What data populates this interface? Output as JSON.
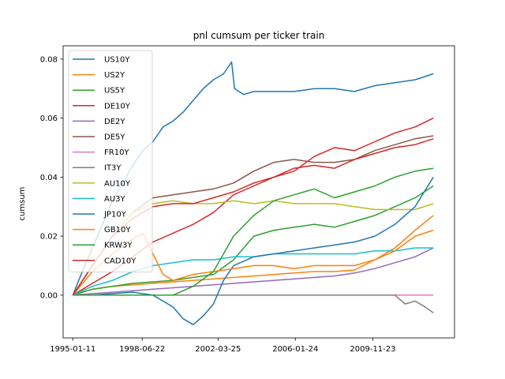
{
  "chart_data": {
    "type": "line",
    "title": "pnl cumsum per ticker train",
    "xlabel": "",
    "ylabel": "cumsum",
    "x_ticks": [
      "1995-01-11",
      "1998-06-22",
      "2002-03-25",
      "2006-01-24",
      "2009-11-23"
    ],
    "y_ticks": [
      "0.00",
      "0.02",
      "0.04",
      "0.06",
      "0.08"
    ],
    "y_tick_values": [
      0.0,
      0.02,
      0.04,
      0.06,
      0.08
    ],
    "xlim": [
      1994.55,
      2013.95
    ],
    "ylim": [
      -0.0145,
      0.0845
    ],
    "grid": false,
    "legend_placement": "upper-left",
    "series": [
      {
        "name": "US10Y",
        "color": "#1f77b4",
        "x": [
          1995.03,
          1995.5,
          1996.0,
          1996.5,
          1997.0,
          1997.5,
          1998.0,
          1998.5,
          1999.0,
          1999.5,
          2000.0,
          2000.5,
          2001.0,
          2001.5,
          2002.0,
          2002.5,
          2002.9,
          2003.05,
          2003.5,
          2004.0,
          2005.0,
          2006.0,
          2007.0,
          2008.0,
          2009.0,
          2010.0,
          2011.0,
          2012.0,
          2012.9
        ],
        "y": [
          0.0,
          0.008,
          0.016,
          0.024,
          0.032,
          0.038,
          0.044,
          0.049,
          0.052,
          0.057,
          0.059,
          0.062,
          0.066,
          0.07,
          0.073,
          0.075,
          0.079,
          0.07,
          0.068,
          0.069,
          0.069,
          0.069,
          0.07,
          0.07,
          0.069,
          0.071,
          0.072,
          0.073,
          0.075
        ]
      },
      {
        "name": "US2Y",
        "color": "#ff7f0e",
        "x": [
          1995.03,
          1995.5,
          1996.0,
          1997.0,
          1998.0,
          1999.0,
          2000.0,
          2001.0,
          2002.0,
          2003.0,
          2004.0,
          2005.0,
          2006.0,
          2007.0,
          2008.0,
          2009.0,
          2010.0,
          2011.0,
          2012.0,
          2012.9
        ],
        "y": [
          0.0,
          0.001,
          0.002,
          0.003,
          0.0035,
          0.004,
          0.0045,
          0.005,
          0.0055,
          0.006,
          0.0065,
          0.007,
          0.0075,
          0.008,
          0.008,
          0.0085,
          0.012,
          0.016,
          0.022,
          0.027
        ]
      },
      {
        "name": "US5Y",
        "color": "#2ca02c",
        "x": [
          1995.03,
          1996.0,
          1997.0,
          1998.0,
          1999.0,
          2000.0,
          2001.0,
          2002.0,
          2003.0,
          2004.0,
          2005.0,
          2006.0,
          2007.0,
          2008.0,
          2009.0,
          2010.0,
          2011.0,
          2012.0,
          2012.9
        ],
        "y": [
          0.0,
          0.002,
          0.003,
          0.004,
          0.0045,
          0.005,
          0.006,
          0.007,
          0.012,
          0.02,
          0.022,
          0.023,
          0.024,
          0.023,
          0.025,
          0.027,
          0.03,
          0.033,
          0.037
        ]
      },
      {
        "name": "DE10Y",
        "color": "#d62728",
        "x": [
          1995.03,
          1996.0,
          1997.0,
          1998.0,
          1999.0,
          2000.0,
          2001.0,
          2002.0,
          2003.0,
          2004.0,
          2005.0,
          2006.0,
          2007.0,
          2008.0,
          2009.0,
          2010.0,
          2011.0,
          2012.0,
          2012.9
        ],
        "y": [
          0.0,
          0.004,
          0.008,
          0.013,
          0.018,
          0.021,
          0.024,
          0.028,
          0.034,
          0.037,
          0.04,
          0.042,
          0.047,
          0.05,
          0.049,
          0.052,
          0.055,
          0.057,
          0.06
        ]
      },
      {
        "name": "DE2Y",
        "color": "#9467bd",
        "x": [
          1995.03,
          1996.0,
          1997.0,
          1998.0,
          1999.0,
          2000.0,
          2001.0,
          2002.0,
          2003.0,
          2004.0,
          2005.0,
          2006.0,
          2007.0,
          2008.0,
          2009.0,
          2010.0,
          2011.0,
          2012.0,
          2012.9
        ],
        "y": [
          0.0,
          0.0005,
          0.001,
          0.0015,
          0.002,
          0.0025,
          0.003,
          0.0035,
          0.004,
          0.0045,
          0.005,
          0.0055,
          0.006,
          0.0065,
          0.0075,
          0.009,
          0.011,
          0.013,
          0.016
        ]
      },
      {
        "name": "DE5Y",
        "color": "#8c564b",
        "x": [
          1995.03,
          1996.0,
          1997.0,
          1998.0,
          1999.0,
          2000.0,
          2001.0,
          2002.0,
          2003.0,
          2004.0,
          2005.0,
          2006.0,
          2007.0,
          2008.0,
          2009.0,
          2010.0,
          2011.0,
          2012.0,
          2012.9
        ],
        "y": [
          0.0,
          0.01,
          0.02,
          0.028,
          0.033,
          0.034,
          0.035,
          0.036,
          0.038,
          0.042,
          0.045,
          0.046,
          0.045,
          0.045,
          0.046,
          0.049,
          0.051,
          0.053,
          0.054
        ]
      },
      {
        "name": "FR10Y",
        "color": "#e377c2",
        "x": [
          1995.03,
          2012.9
        ],
        "y": [
          0.0,
          0.0
        ]
      },
      {
        "name": "IT3Y",
        "color": "#7f7f7f",
        "x": [
          1995.03,
          2010.0,
          2011.0,
          2011.5,
          2012.0,
          2012.5,
          2012.9
        ],
        "y": [
          0.0,
          0.0,
          0.0,
          -0.003,
          -0.002,
          -0.004,
          -0.006
        ]
      },
      {
        "name": "AU10Y",
        "color": "#bcbd22",
        "x": [
          1995.03,
          1996.0,
          1997.0,
          1998.0,
          1999.0,
          2000.0,
          2001.0,
          2002.0,
          2003.0,
          2004.0,
          2005.0,
          2006.0,
          2007.0,
          2008.0,
          2009.0,
          2010.0,
          2011.0,
          2012.0,
          2012.9
        ],
        "y": [
          0.0,
          0.01,
          0.02,
          0.028,
          0.031,
          0.032,
          0.031,
          0.031,
          0.032,
          0.031,
          0.032,
          0.031,
          0.031,
          0.031,
          0.03,
          0.029,
          0.029,
          0.029,
          0.031
        ]
      },
      {
        "name": "AU3Y",
        "color": "#17becf",
        "x": [
          1995.03,
          1996.0,
          1997.0,
          1998.0,
          1999.0,
          2000.0,
          2001.0,
          2002.0,
          2003.0,
          2004.0,
          2005.0,
          2006.0,
          2007.0,
          2008.0,
          2009.0,
          2010.0,
          2011.0,
          2012.0,
          2012.9
        ],
        "y": [
          0.0,
          0.003,
          0.005,
          0.008,
          0.01,
          0.011,
          0.012,
          0.012,
          0.013,
          0.013,
          0.014,
          0.014,
          0.014,
          0.014,
          0.014,
          0.015,
          0.015,
          0.016,
          0.016
        ]
      },
      {
        "name": "JP10Y",
        "color": "#1f77b4",
        "x": [
          1995.03,
          1996.0,
          1997.0,
          1998.0,
          1999.0,
          2000.0,
          2000.5,
          2001.0,
          2001.5,
          2002.0,
          2002.5,
          2003.0,
          2004.0,
          2005.0,
          2006.0,
          2007.0,
          2008.0,
          2009.0,
          2010.0,
          2011.0,
          2012.0,
          2012.9
        ],
        "y": [
          0.0,
          0.0,
          0.0005,
          0.001,
          0.0,
          -0.004,
          -0.008,
          -0.01,
          -0.007,
          -0.003,
          0.005,
          0.01,
          0.013,
          0.014,
          0.015,
          0.016,
          0.017,
          0.018,
          0.02,
          0.024,
          0.03,
          0.04
        ]
      },
      {
        "name": "GB10Y",
        "color": "#ff7f0e",
        "x": [
          1995.03,
          1996.0,
          1997.0,
          1998.0,
          1998.5,
          1999.0,
          1999.5,
          2000.0,
          2001.0,
          2002.0,
          2003.0,
          2004.0,
          2005.0,
          2006.0,
          2007.0,
          2008.0,
          2009.0,
          2010.0,
          2011.0,
          2012.0,
          2012.9
        ],
        "y": [
          0.0,
          0.008,
          0.014,
          0.019,
          0.021,
          0.014,
          0.007,
          0.005,
          0.007,
          0.008,
          0.009,
          0.01,
          0.01,
          0.009,
          0.01,
          0.01,
          0.01,
          0.012,
          0.015,
          0.02,
          0.022
        ]
      },
      {
        "name": "KRW3Y",
        "color": "#2ca02c",
        "x": [
          1995.03,
          1996.0,
          1997.0,
          1998.0,
          1999.0,
          2000.0,
          2001.0,
          2002.0,
          2003.0,
          2004.0,
          2005.0,
          2006.0,
          2007.0,
          2008.0,
          2009.0,
          2010.0,
          2011.0,
          2012.0,
          2012.9
        ],
        "y": [
          0.0,
          0.0,
          0.0,
          0.0,
          0.0,
          0.0,
          0.003,
          0.008,
          0.02,
          0.027,
          0.032,
          0.034,
          0.036,
          0.033,
          0.035,
          0.037,
          0.04,
          0.042,
          0.043
        ]
      },
      {
        "name": "CAD10Y",
        "color": "#d62728",
        "x": [
          1995.03,
          1996.0,
          1997.0,
          1998.0,
          1999.0,
          2000.0,
          2001.0,
          2002.0,
          2003.0,
          2004.0,
          2005.0,
          2006.0,
          2007.0,
          2008.0,
          2009.0,
          2010.0,
          2011.0,
          2012.0,
          2012.9
        ],
        "y": [
          0.0,
          0.01,
          0.02,
          0.026,
          0.03,
          0.031,
          0.031,
          0.033,
          0.035,
          0.038,
          0.04,
          0.043,
          0.044,
          0.043,
          0.046,
          0.048,
          0.05,
          0.051,
          0.053
        ]
      }
    ]
  }
}
